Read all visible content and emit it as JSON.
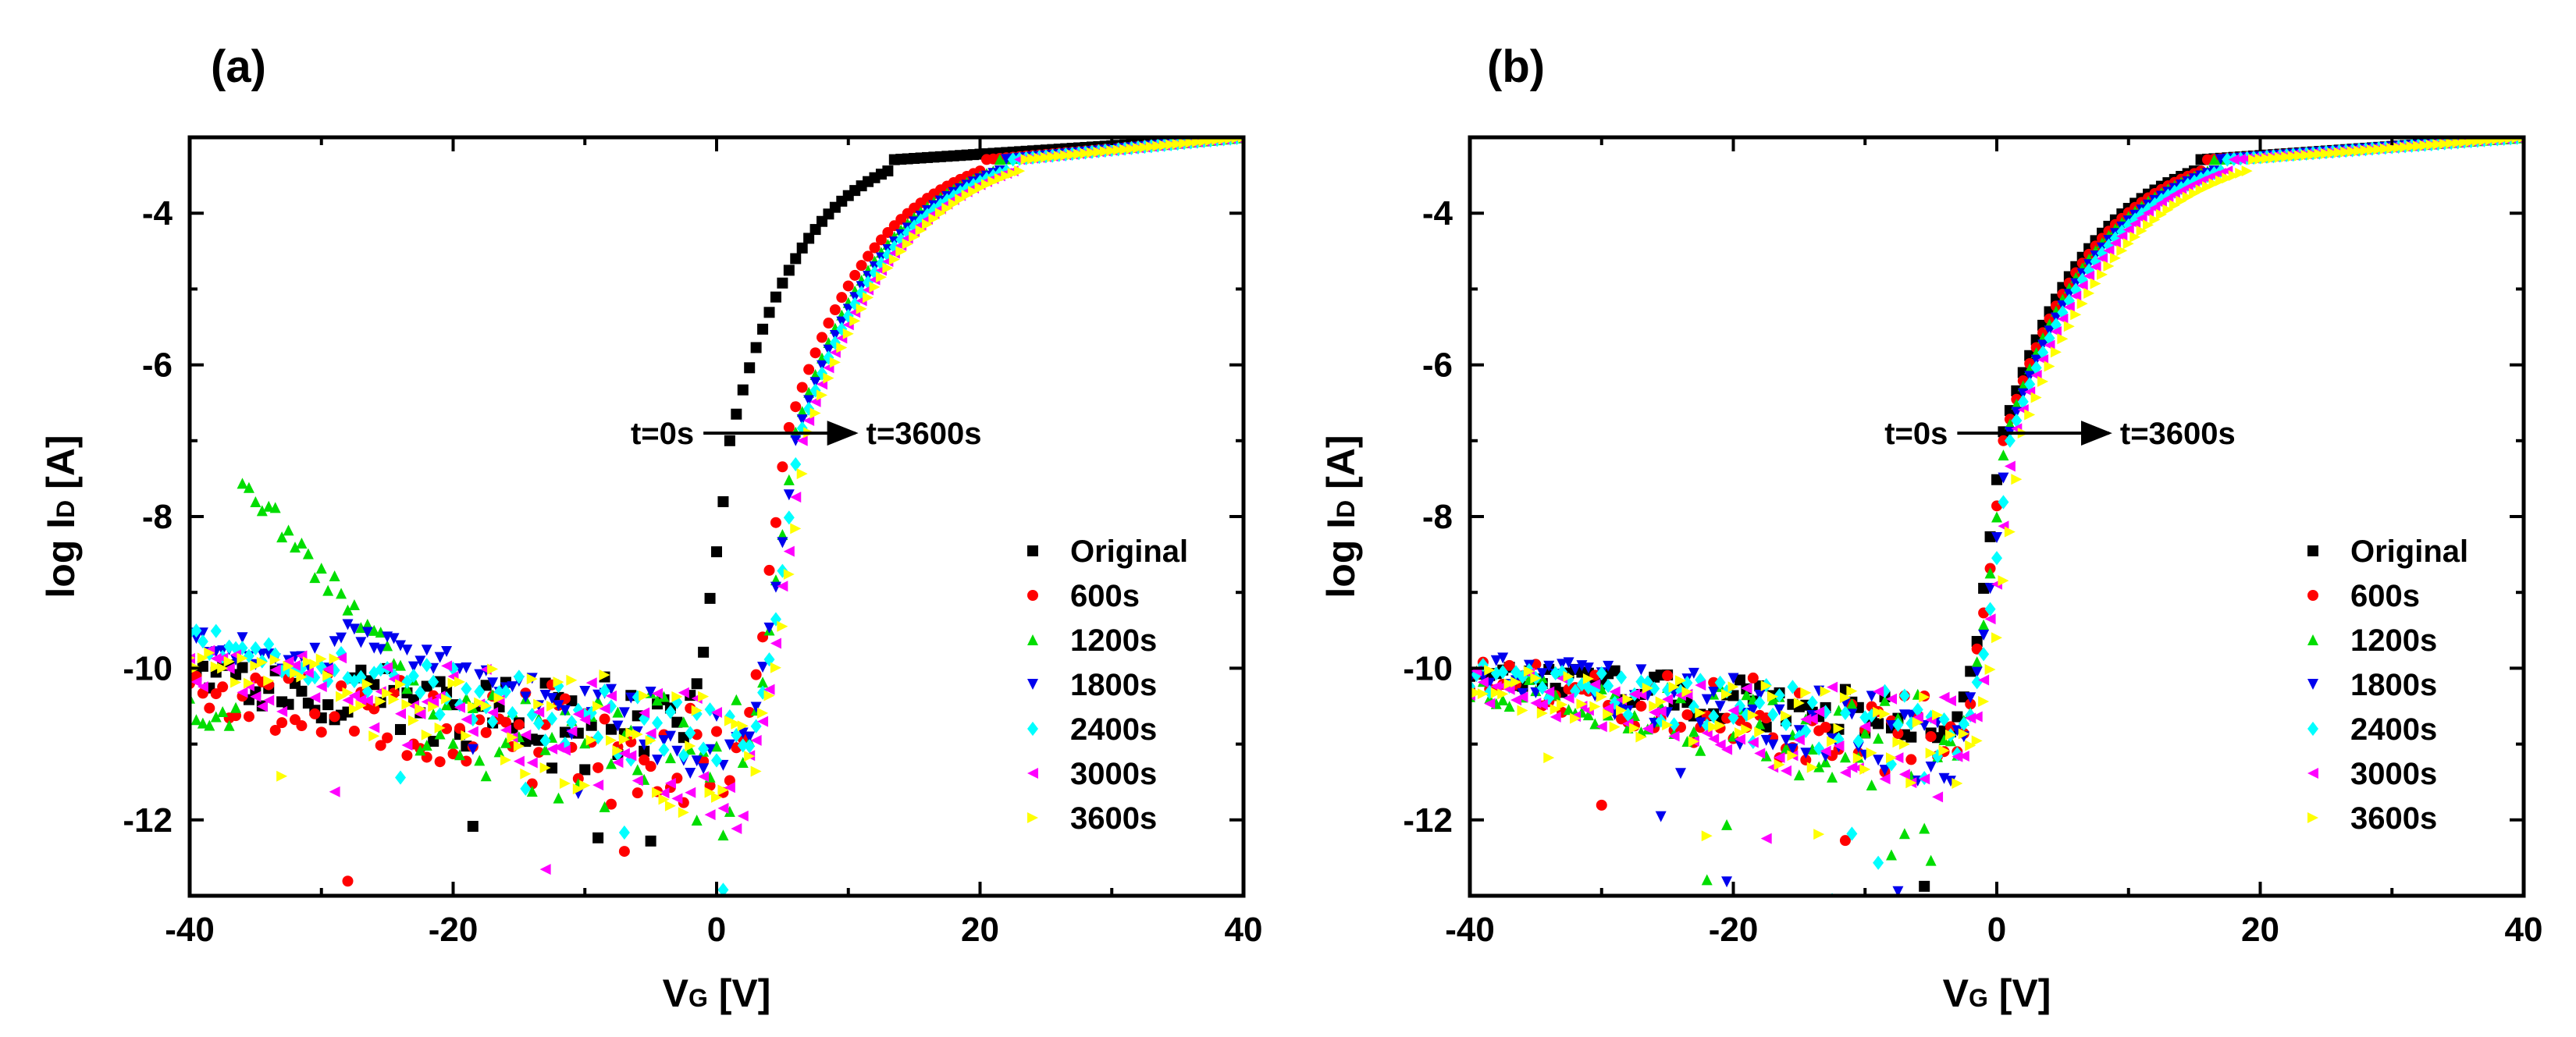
{
  "chart_data": [
    {
      "id": "a",
      "type": "scatter",
      "panel_label": "(a)",
      "xlabel_main": "V",
      "xlabel_sub": "G",
      "xlabel_unit": "[V]",
      "ylabel_main": "log I",
      "ylabel_sub": "D",
      "ylabel_unit": "[A]",
      "xlim": [
        -40,
        40
      ],
      "ylim": [
        -13,
        -3
      ],
      "xticks": [
        -40,
        -20,
        0,
        20,
        40
      ],
      "xtick_labels": [
        "-40",
        "-20",
        "0",
        "20",
        "40"
      ],
      "yticks": [
        -4,
        -6,
        -8,
        -10,
        -12
      ],
      "ytick_labels": [
        "-4",
        "-6",
        "-8",
        "-10",
        "-12"
      ],
      "annotation": {
        "from_label": "t=0s",
        "to_label": "t=3600s",
        "y": -6.9,
        "x_from": -1,
        "x_to": 11
      },
      "legend": {
        "position": "lower-right"
      },
      "series": [
        {
          "name": "Original",
          "color": "#000000",
          "marker": "square",
          "vth": 1.0,
          "ss": 0.55,
          "sat_v": 13,
          "off_start": -10.1,
          "off_end": -10.9,
          "noise": 0.35,
          "hump": null
        },
        {
          "name": "600s",
          "color": "#ff0000",
          "marker": "circle",
          "vth": 5.2,
          "ss": 0.6,
          "sat_v": 20,
          "off_start": -10.3,
          "off_end": -11.2,
          "noise": 0.45,
          "hump": null
        },
        {
          "name": "1200s",
          "color": "#00dd00",
          "marker": "triangle-up",
          "vth": 5.8,
          "ss": 0.62,
          "sat_v": 21,
          "off_start": -10.5,
          "off_end": -11.3,
          "noise": 0.45,
          "hump": {
            "start_x": -36,
            "start_y": -7.5,
            "end_x": -23,
            "end_y": -10.2
          }
        },
        {
          "name": "1800s",
          "color": "#0000ee",
          "marker": "triangle-down",
          "vth": 6.0,
          "ss": 0.63,
          "sat_v": 21.5,
          "off_start": -9.6,
          "off_end": -11.0,
          "noise": 0.25,
          "hump": {
            "start_x": -29,
            "start_y": -9.5,
            "end_x": -12,
            "end_y": -10.4
          }
        },
        {
          "name": "2400s",
          "color": "#00ffff",
          "marker": "diamond",
          "vth": 6.2,
          "ss": 0.64,
          "sat_v": 22,
          "off_start": -9.6,
          "off_end": -11.1,
          "noise": 0.25,
          "hump": null
        },
        {
          "name": "3000s",
          "color": "#ff00ff",
          "marker": "triangle-left",
          "vth": 6.5,
          "ss": 0.65,
          "sat_v": 22.5,
          "off_start": -10.0,
          "off_end": -11.2,
          "noise": 0.45,
          "hump": null
        },
        {
          "name": "3600s",
          "color": "#ffff00",
          "marker": "triangle-right",
          "vth": 6.8,
          "ss": 0.66,
          "sat_v": 23,
          "off_start": -10.0,
          "off_end": -11.2,
          "noise": 0.45,
          "hump": null
        }
      ]
    },
    {
      "id": "b",
      "type": "scatter",
      "panel_label": "(b)",
      "xlabel_main": "V",
      "xlabel_sub": "G",
      "xlabel_unit": "[V]",
      "ylabel_main": "log I",
      "ylabel_sub": "D",
      "ylabel_unit": "[A]",
      "xlim": [
        -40,
        40
      ],
      "ylim": [
        -13,
        -3
      ],
      "xticks": [
        -40,
        -20,
        0,
        20,
        40
      ],
      "xtick_labels": [
        "-40",
        "-20",
        "0",
        "20",
        "40"
      ],
      "yticks": [
        -4,
        -6,
        -8,
        -10,
        -12
      ],
      "ytick_labels": [
        "-4",
        "-6",
        "-8",
        "-10",
        "-12"
      ],
      "annotation": {
        "from_label": "t=0s",
        "to_label": "t=3600s",
        "y": -6.9,
        "x_from": -3,
        "x_to": 9
      },
      "legend": {
        "position": "lower-right"
      },
      "series": [
        {
          "name": "Original",
          "color": "#000000",
          "marker": "square",
          "vth": 0.3,
          "ss": 0.5,
          "sat_v": 15,
          "off_start": -10.0,
          "off_end": -10.8,
          "noise": 0.2,
          "hump": null
        },
        {
          "name": "600s",
          "color": "#ff0000",
          "marker": "circle",
          "vth": 0.5,
          "ss": 0.52,
          "sat_v": 15.5,
          "off_start": -10.1,
          "off_end": -11.0,
          "noise": 0.35,
          "hump": null
        },
        {
          "name": "1200s",
          "color": "#00dd00",
          "marker": "triangle-up",
          "vth": 0.6,
          "ss": 0.53,
          "sat_v": 16,
          "off_start": -10.2,
          "off_end": -11.1,
          "noise": 0.35,
          "hump": null
        },
        {
          "name": "1800s",
          "color": "#0000ee",
          "marker": "triangle-down",
          "vth": 0.8,
          "ss": 0.54,
          "sat_v": 16.5,
          "off_start": -10.0,
          "off_end": -11.0,
          "noise": 0.3,
          "hump": null
        },
        {
          "name": "2400s",
          "color": "#00ffff",
          "marker": "diamond",
          "vth": 1.0,
          "ss": 0.55,
          "sat_v": 17,
          "off_start": -10.1,
          "off_end": -11.0,
          "noise": 0.3,
          "hump": null
        },
        {
          "name": "3000s",
          "color": "#ff00ff",
          "marker": "triangle-left",
          "vth": 1.2,
          "ss": 0.56,
          "sat_v": 17.5,
          "off_start": -10.2,
          "off_end": -11.1,
          "noise": 0.35,
          "hump": null
        },
        {
          "name": "3600s",
          "color": "#ffff00",
          "marker": "triangle-right",
          "vth": 1.8,
          "ss": 0.58,
          "sat_v": 19,
          "off_start": -10.2,
          "off_end": -11.1,
          "noise": 0.35,
          "hump": null
        }
      ]
    }
  ]
}
